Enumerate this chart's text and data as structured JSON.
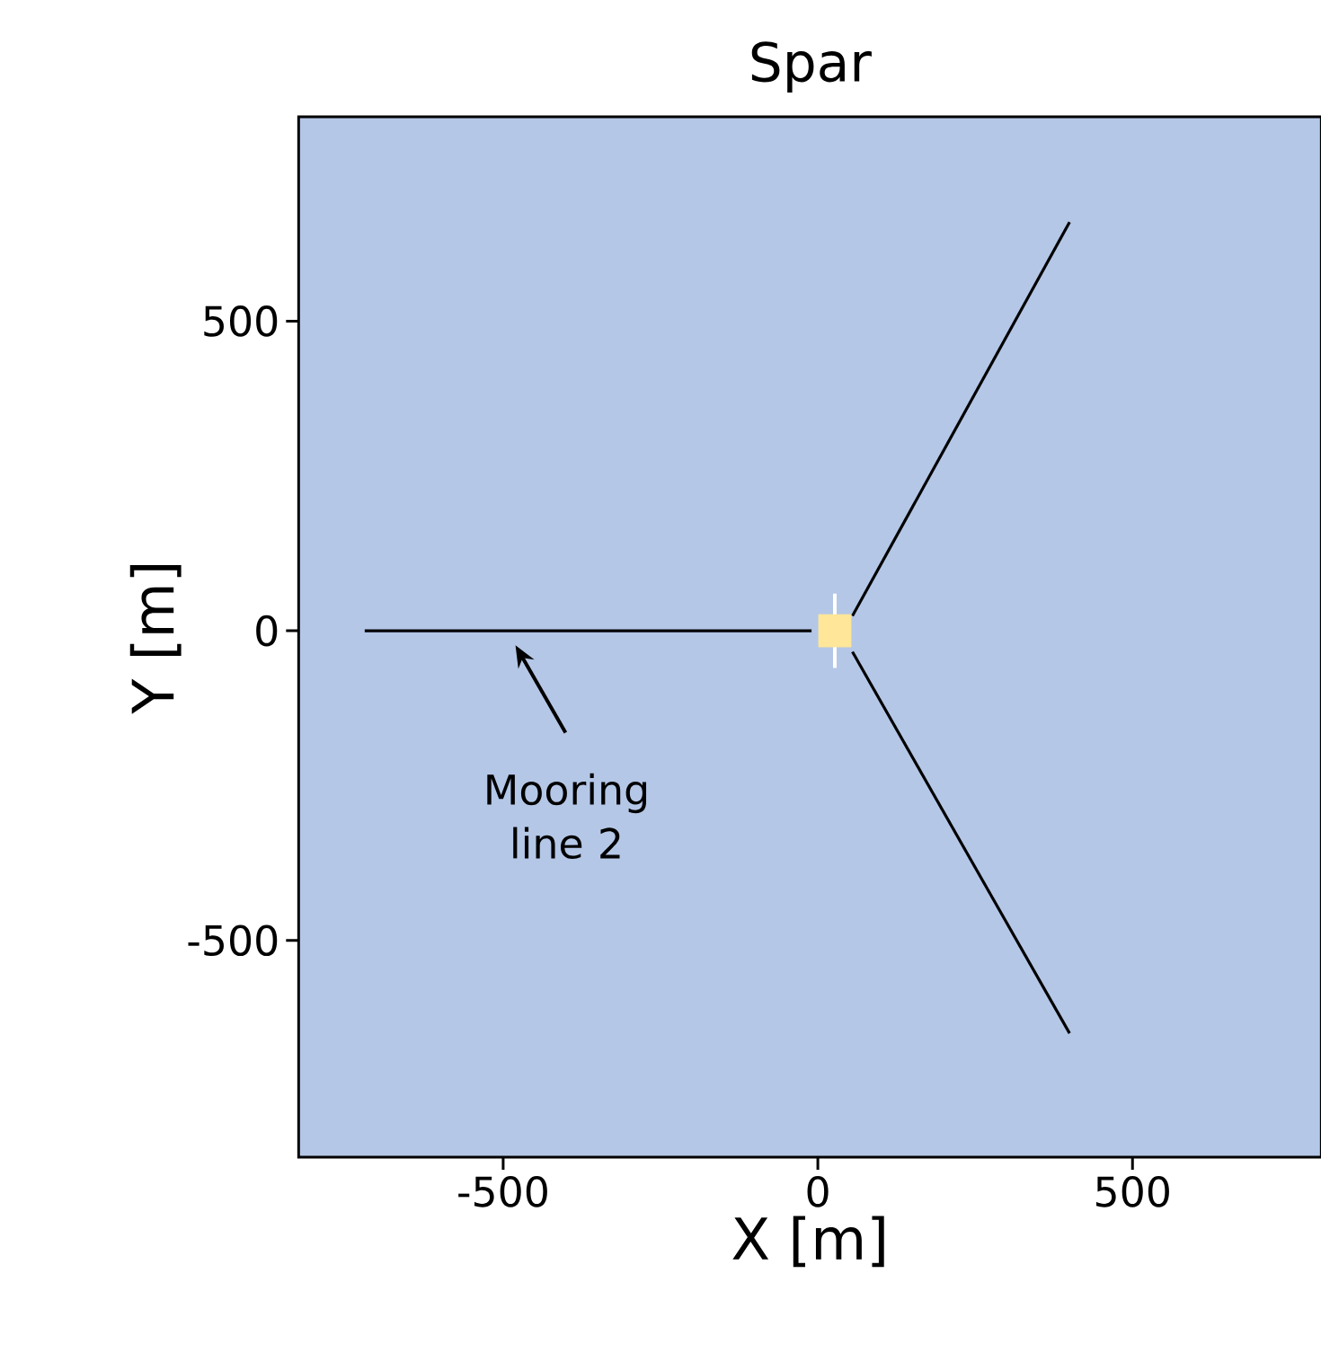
{
  "chart_data": {
    "type": "line",
    "title": "Spar",
    "xlabel": "X [m]",
    "ylabel": "Y [m]",
    "xlim": [
      -825,
      800
    ],
    "ylim": [
      -850,
      830
    ],
    "xticks": [
      -500,
      0,
      500
    ],
    "yticks": [
      -500,
      0,
      500
    ],
    "series": [
      {
        "color": "#000000",
        "x": [
          -720,
          -10
        ],
        "values": [
          0,
          0
        ]
      },
      {
        "color": "#000000",
        "x": [
          55,
          400
        ],
        "values": [
          24,
          660
        ]
      },
      {
        "color": "#000000",
        "x": [
          55,
          400
        ],
        "values": [
          -34,
          -650
        ]
      },
      {
        "type": "scatter",
        "marker": "square",
        "color": "#ffe699",
        "x": [
          27
        ],
        "values": [
          0
        ]
      },
      {
        "color": "#ffffff",
        "x": [
          27,
          27
        ],
        "values": [
          -60,
          60
        ]
      }
    ],
    "annotations": [
      "Mooring line 2"
    ]
  }
}
